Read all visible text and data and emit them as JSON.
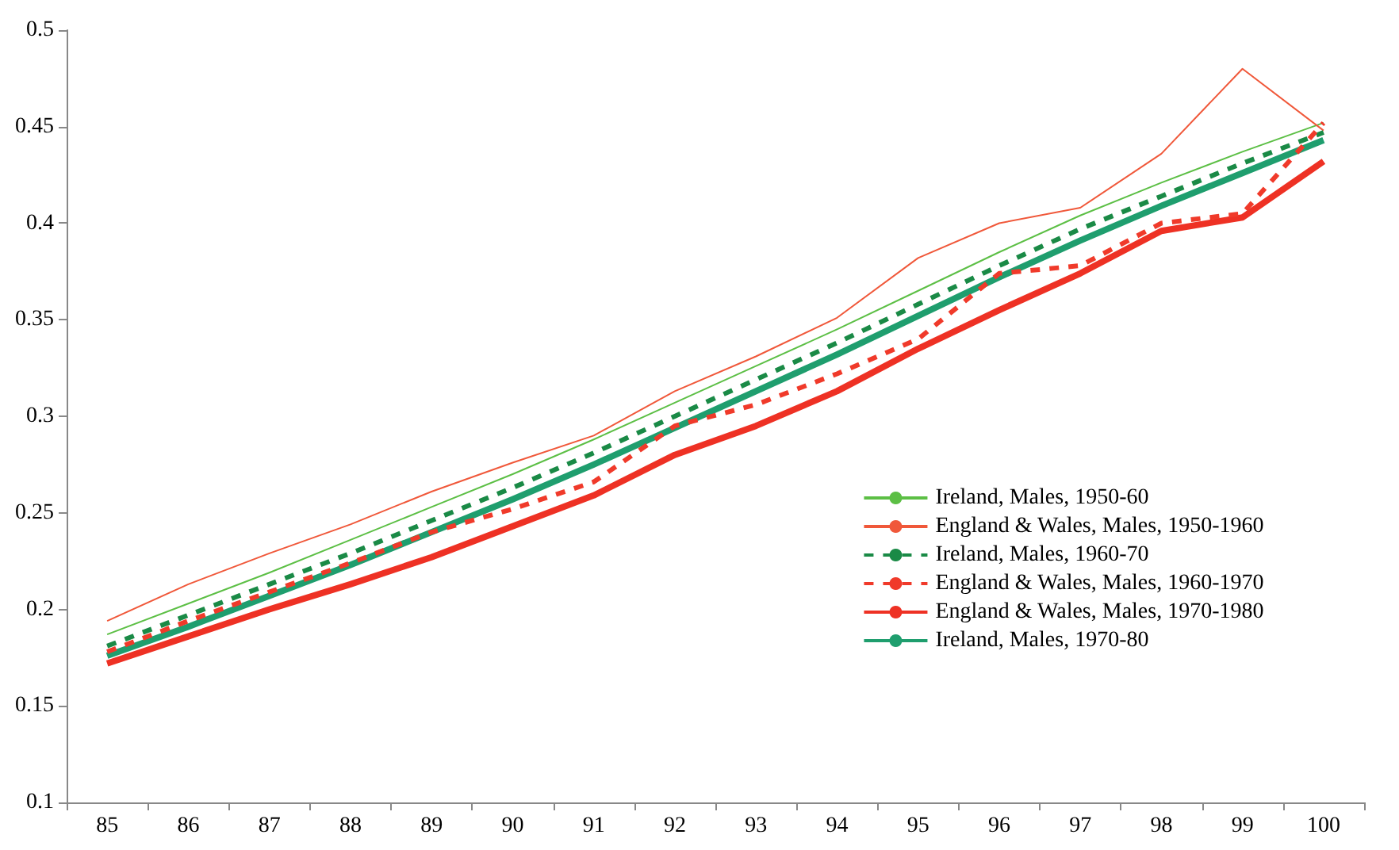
{
  "chart_data": {
    "type": "line",
    "categories": [
      "85",
      "86",
      "87",
      "88",
      "89",
      "90",
      "91",
      "92",
      "93",
      "94",
      "95",
      "96",
      "97",
      "98",
      "99",
      "100"
    ],
    "ylim": [
      0.1,
      0.5
    ],
    "yticks": [
      0.1,
      0.15,
      0.2,
      0.25,
      0.3,
      0.35,
      0.4,
      0.45,
      0.5
    ],
    "grid": false,
    "legend": "bottom right",
    "marker": "none",
    "series": [
      {
        "name": "Ireland, Males, 1950-60",
        "color": "#5cbf45",
        "line_style": "solid",
        "values": [
          0.187,
          0.203,
          0.219,
          0.236,
          0.253,
          0.27,
          0.288,
          0.307,
          0.326,
          0.345,
          0.365,
          0.385,
          0.404,
          0.421,
          0.437,
          0.452
        ]
      },
      {
        "name": "England & Wales, Males, 1950-1960",
        "color": "#f0583a",
        "line_style": "solid",
        "values": [
          0.194,
          0.213,
          0.229,
          0.244,
          0.261,
          0.276,
          0.29,
          0.313,
          0.331,
          0.351,
          0.382,
          0.4,
          0.408,
          0.436,
          0.48,
          0.448
        ]
      },
      {
        "name": "Ireland, Males, 1960-70",
        "color": "#1a8a46",
        "line_style": "dashed",
        "values": [
          0.181,
          0.197,
          0.213,
          0.229,
          0.246,
          0.263,
          0.281,
          0.3,
          0.319,
          0.338,
          0.358,
          0.378,
          0.397,
          0.414,
          0.431,
          0.447
        ]
      },
      {
        "name": "England & Wales, Males, 1960-1970",
        "color": "#f03a2a",
        "line_style": "dashed",
        "values": [
          0.178,
          0.194,
          0.209,
          0.224,
          0.24,
          0.252,
          0.266,
          0.295,
          0.306,
          0.322,
          0.34,
          0.374,
          0.378,
          0.4,
          0.405,
          0.452
        ]
      },
      {
        "name": "England & Wales, Males, 1970-1980",
        "color": "#ee3124",
        "line_style": "solid",
        "values": [
          0.172,
          0.186,
          0.2,
          0.213,
          0.227,
          0.243,
          0.259,
          0.28,
          0.295,
          0.313,
          0.335,
          0.355,
          0.374,
          0.396,
          0.403,
          0.432
        ]
      },
      {
        "name": "Ireland, Males, 1970-80",
        "color": "#1f9e6e",
        "line_style": "solid",
        "values": [
          0.176,
          0.191,
          0.207,
          0.223,
          0.24,
          0.257,
          0.275,
          0.294,
          0.313,
          0.332,
          0.352,
          0.372,
          0.391,
          0.409,
          0.426,
          0.443
        ]
      }
    ]
  }
}
